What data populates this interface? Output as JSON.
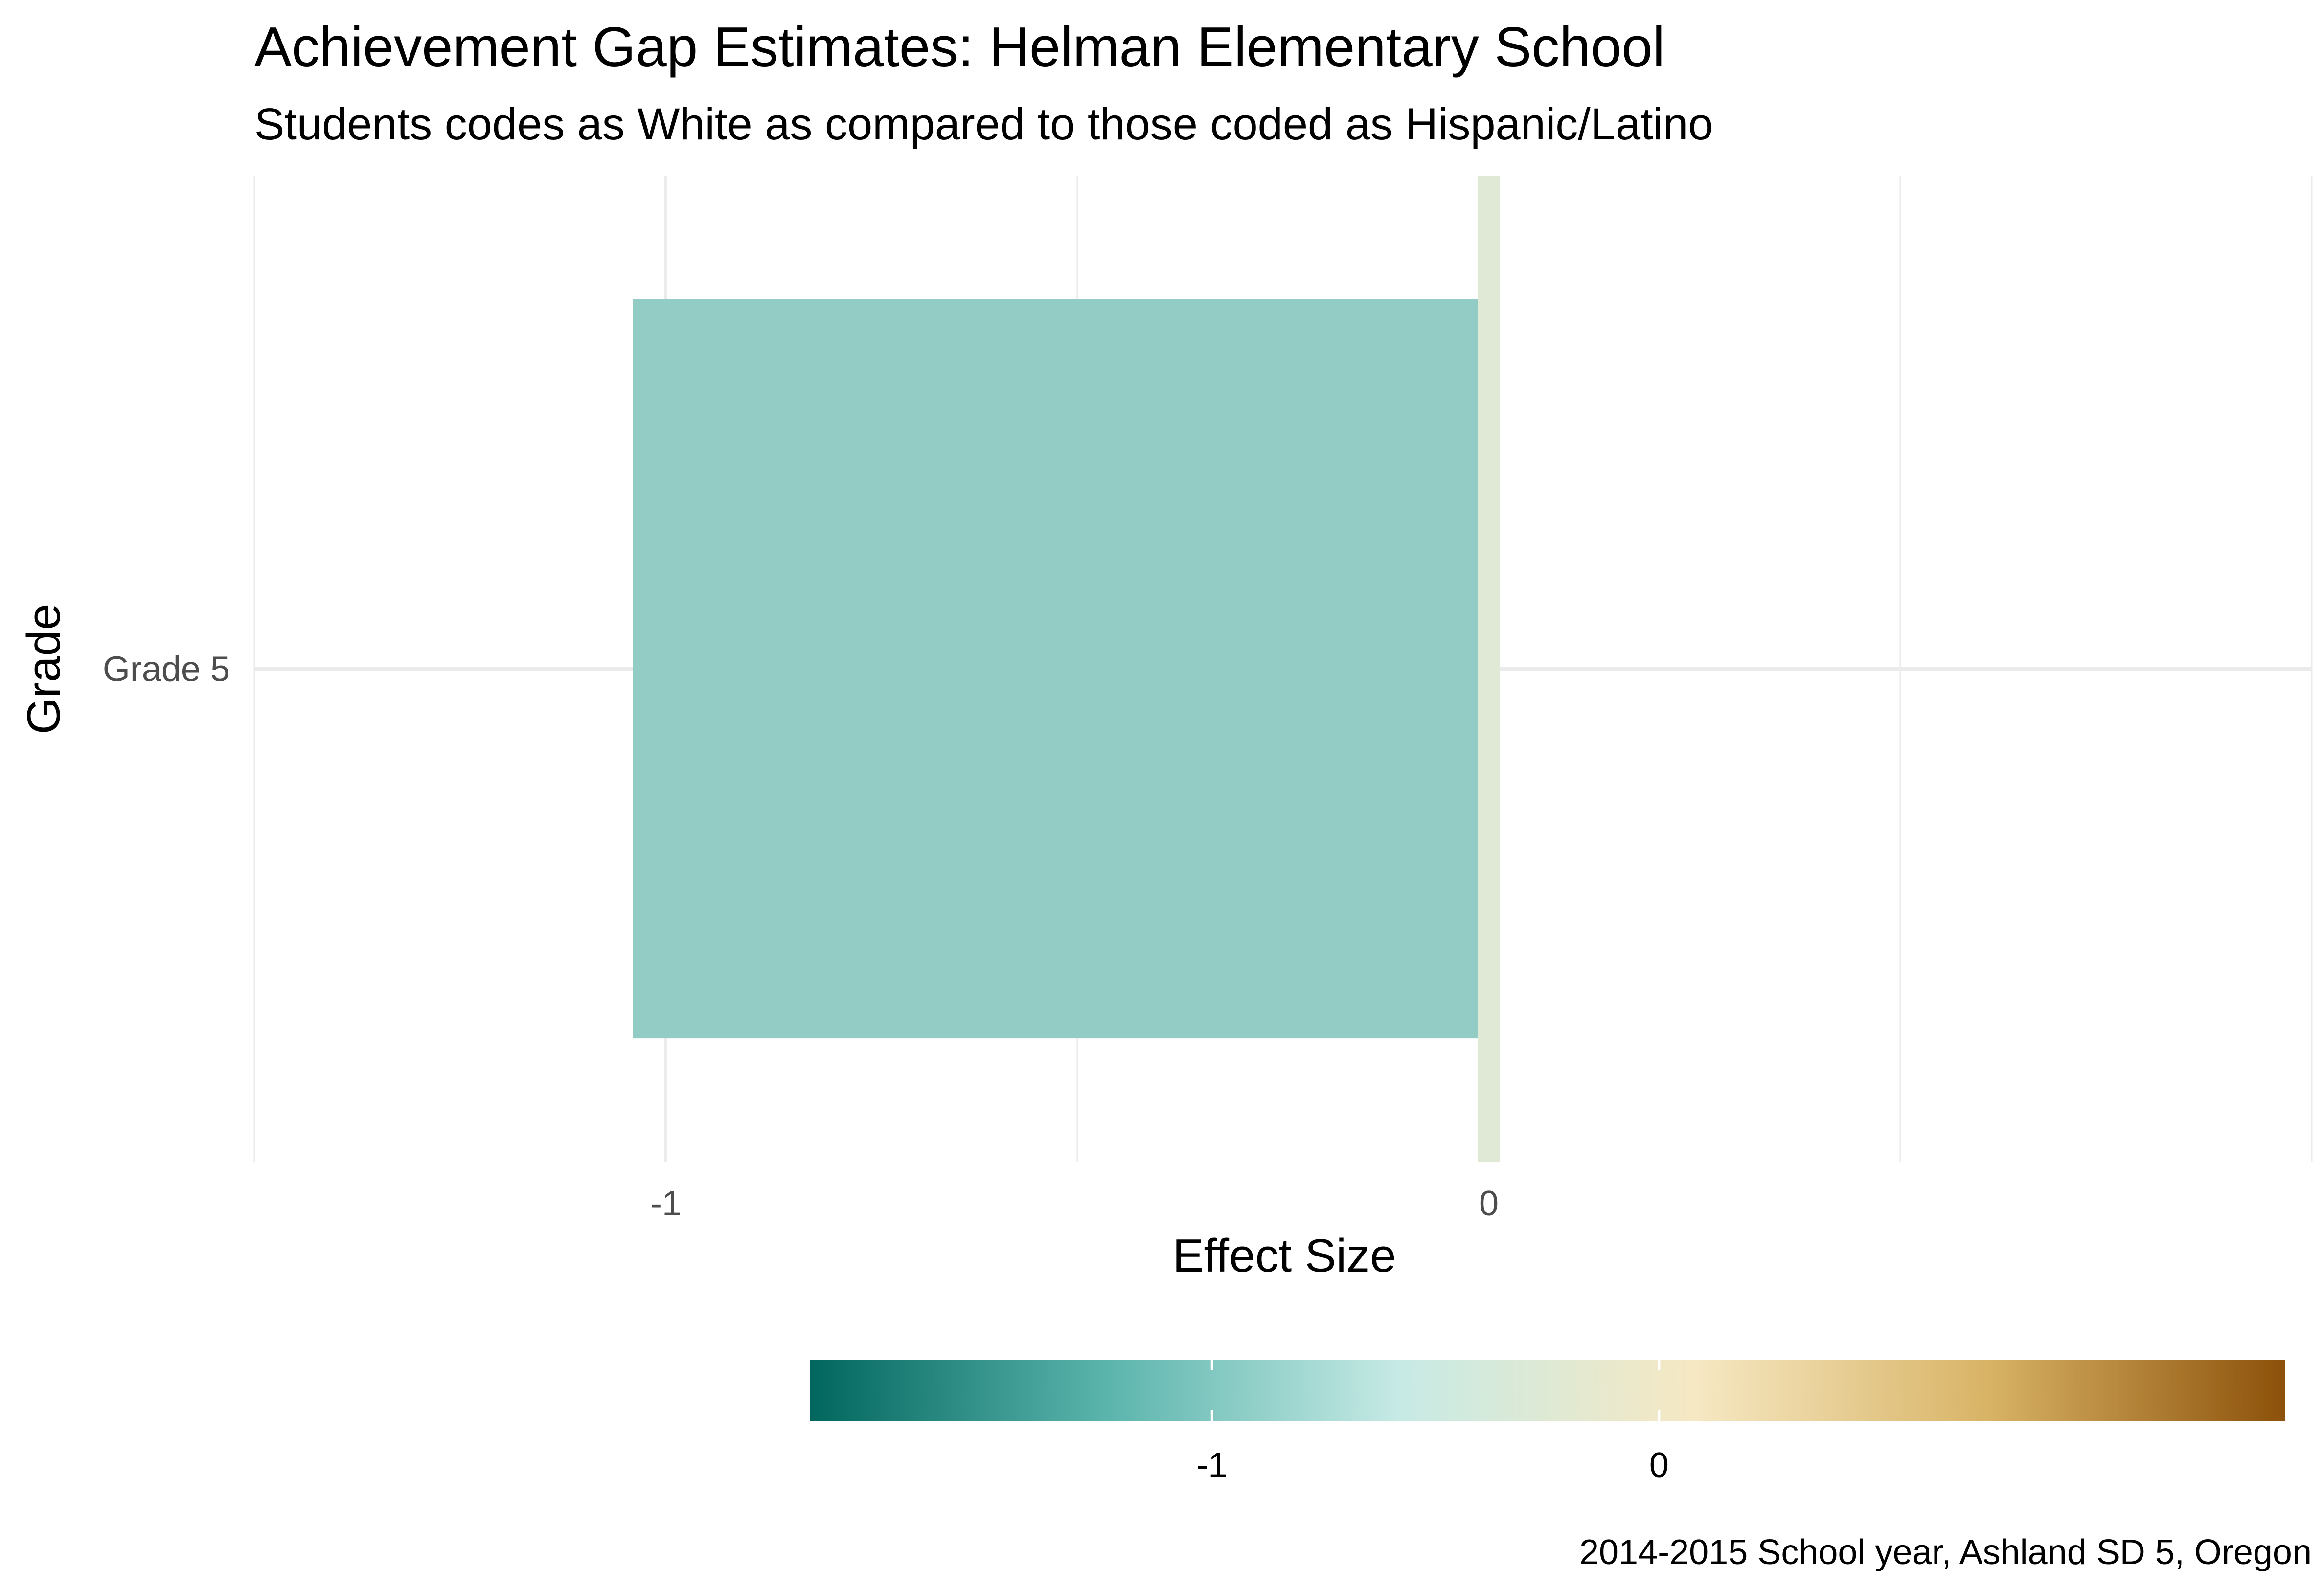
{
  "chart_data": {
    "type": "bar",
    "orientation": "horizontal",
    "title": "Achievement Gap Estimates: Helman Elementary School",
    "subtitle": "Students codes as White as compared to those coded as Hispanic/Latino",
    "xlabel": "Effect Size",
    "ylabel": "Grade",
    "caption": "2014-2015 School year, Ashland SD 5, Oregon",
    "categories": [
      "Grade 5"
    ],
    "values": [
      -1.04
    ],
    "xlim": [
      -1.5,
      1.0
    ],
    "x_ticks": [
      -1,
      0
    ],
    "x_tick_labels": [
      "-1",
      "0"
    ],
    "grid": true,
    "reference_line": {
      "x": 0,
      "color": "#dfe9d6"
    },
    "bar_color": "#92ccc4",
    "legend": {
      "type": "colorbar",
      "placement": "bottom",
      "range": [
        -1.9,
        1.4
      ],
      "ticks": [
        -1,
        0
      ],
      "tick_labels": [
        "-1",
        "0"
      ],
      "colors": [
        "#01665e",
        "#5ab4ac",
        "#c7eae5",
        "#f6e8c3",
        "#d8b365",
        "#8c510a"
      ]
    }
  }
}
